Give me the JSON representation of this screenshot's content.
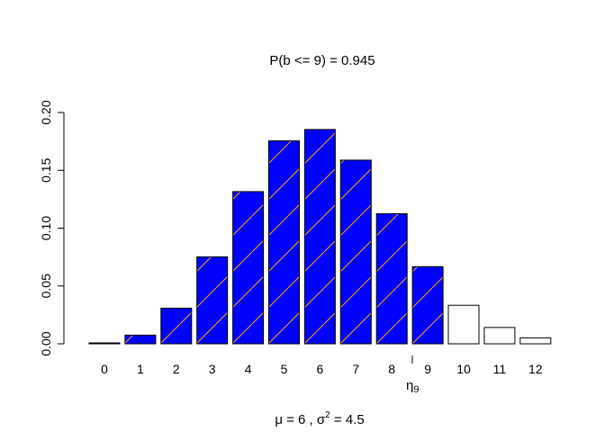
{
  "chart_data": {
    "type": "bar",
    "title": "P(b  <=  9) =  0.945",
    "subtitle": "μ = 6 ,  σ² = 4.5",
    "subtitle_parts": {
      "mu": "μ = 6 ,  σ",
      "sup": "2",
      "rest": " = 4.5"
    },
    "marker_label": "η",
    "marker_sub": "9",
    "marker_x": 8.5,
    "categories": [
      "0",
      "1",
      "2",
      "3",
      "4",
      "5",
      "6",
      "7",
      "8",
      "9",
      "10",
      "11",
      "12"
    ],
    "values": [
      0.0008,
      0.0075,
      0.0308,
      0.0752,
      0.1316,
      0.1755,
      0.1853,
      0.1588,
      0.1125,
      0.0667,
      0.0333,
      0.0141,
      0.0051
    ],
    "highlight_upto": 9,
    "ylim": [
      0,
      0.2
    ],
    "yticks": [
      "0.00",
      "0.05",
      "0.10",
      "0.15",
      "0.20"
    ],
    "grid": false,
    "colors": {
      "fill": "#0000ff",
      "hatch": "#ffa500",
      "outline": "#000000"
    }
  }
}
